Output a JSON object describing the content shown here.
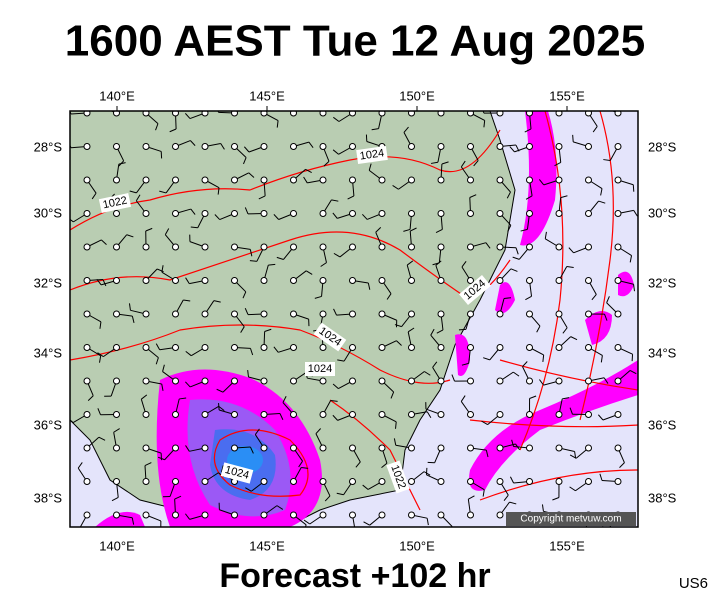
{
  "title": "1600 AEST Tue 12 Aug 2025",
  "footer": "Forecast +102 hr",
  "region": "US6",
  "copyright": "Copyright metvuw.com",
  "x_axis": {
    "labels": [
      "140°E",
      "145°E",
      "150°E",
      "155°E"
    ]
  },
  "y_axis": {
    "labels": [
      "28°S",
      "30°S",
      "32°S",
      "34°S",
      "36°S",
      "38°S"
    ]
  },
  "contour_labels": [
    "1024",
    "1022",
    "1024",
    "1024",
    "1024",
    "1024",
    "1022"
  ]
}
